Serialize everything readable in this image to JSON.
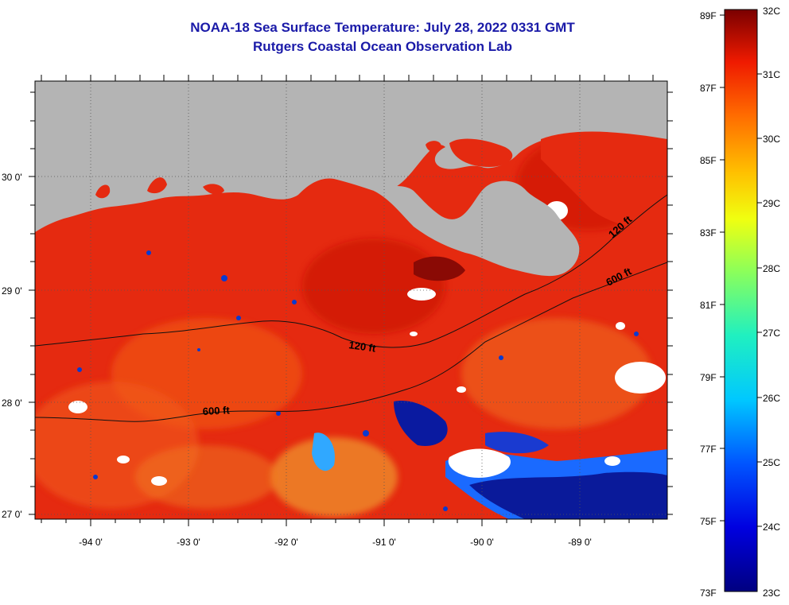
{
  "title": "NOAA-18 Sea Surface Temperature:  July 28, 2022 0331 GMT",
  "subtitle": "Rutgers Coastal Ocean Observation Lab",
  "map": {
    "lat_labels": [
      "30 0'",
      "29 0'",
      "28 0'",
      "27 0'"
    ],
    "lon_labels": [
      "-94 0'",
      "-93 0'",
      "-92 0'",
      "-91 0'",
      "-90 0'",
      "-89 0'"
    ],
    "contours": [
      {
        "label": "120 ft",
        "position": "center"
      },
      {
        "label": "600 ft",
        "position": "left"
      },
      {
        "label": "120 ft",
        "position": "upper-right"
      },
      {
        "label": "600 ft",
        "position": "right"
      }
    ],
    "colors": {
      "land": "#b4b4b4",
      "ocean_warm": "#e52a10",
      "cold_water": "#0a1a9a",
      "cloud": "#ffffff"
    }
  },
  "colorbar": {
    "fahrenheit_labels": [
      "89F",
      "87F",
      "85F",
      "83F",
      "81F",
      "79F",
      "77F",
      "75F",
      "73F"
    ],
    "celsius_labels": [
      "32C",
      "31C",
      "30C",
      "29C",
      "28C",
      "27C",
      "26C",
      "25C",
      "24C",
      "23C"
    ]
  }
}
